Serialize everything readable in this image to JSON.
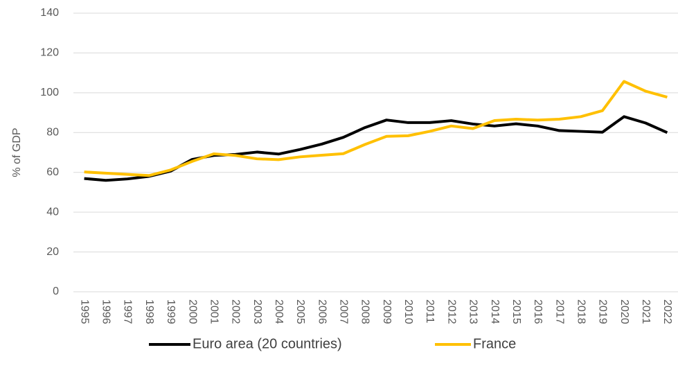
{
  "chart_data": {
    "type": "line",
    "y_label": "% of GDP",
    "categories": [
      "1995",
      "1996",
      "1997",
      "1998",
      "1999",
      "2000",
      "2001",
      "2002",
      "2003",
      "2004",
      "2005",
      "2006",
      "2007",
      "2008",
      "2009",
      "2010",
      "2011",
      "2012",
      "2013",
      "2014",
      "2015",
      "2016",
      "2017",
      "2018",
      "2019",
      "2020",
      "2021",
      "2022"
    ],
    "series": [
      {
        "name": "Euro area (20 countries)",
        "color": "#000000",
        "values": [
          56.9,
          56.0,
          56.7,
          58.0,
          60.6,
          66.5,
          68.5,
          69.0,
          70.2,
          69.2,
          71.5,
          74.2,
          77.6,
          82.5,
          86.3,
          85.0,
          85.0,
          86.0,
          84.3,
          83.3,
          84.4,
          83.3,
          81.0,
          80.6,
          80.2,
          88.0,
          84.8,
          80.0
        ]
      },
      {
        "name": "France",
        "color": "#ffc000",
        "values": [
          60.2,
          59.6,
          59.0,
          58.4,
          61.2,
          65.5,
          69.3,
          68.5,
          66.8,
          66.4,
          67.8,
          68.6,
          69.4,
          74.0,
          78.1,
          78.4,
          80.6,
          83.3,
          82.0,
          86.0,
          86.7,
          86.3,
          86.7,
          88.0,
          91.0,
          105.7,
          100.8,
          97.8
        ]
      }
    ],
    "ylim": [
      0,
      140
    ],
    "yticks": [
      0,
      20,
      40,
      60,
      80,
      100,
      120,
      140
    ],
    "grid": true,
    "legend": "bottom"
  }
}
